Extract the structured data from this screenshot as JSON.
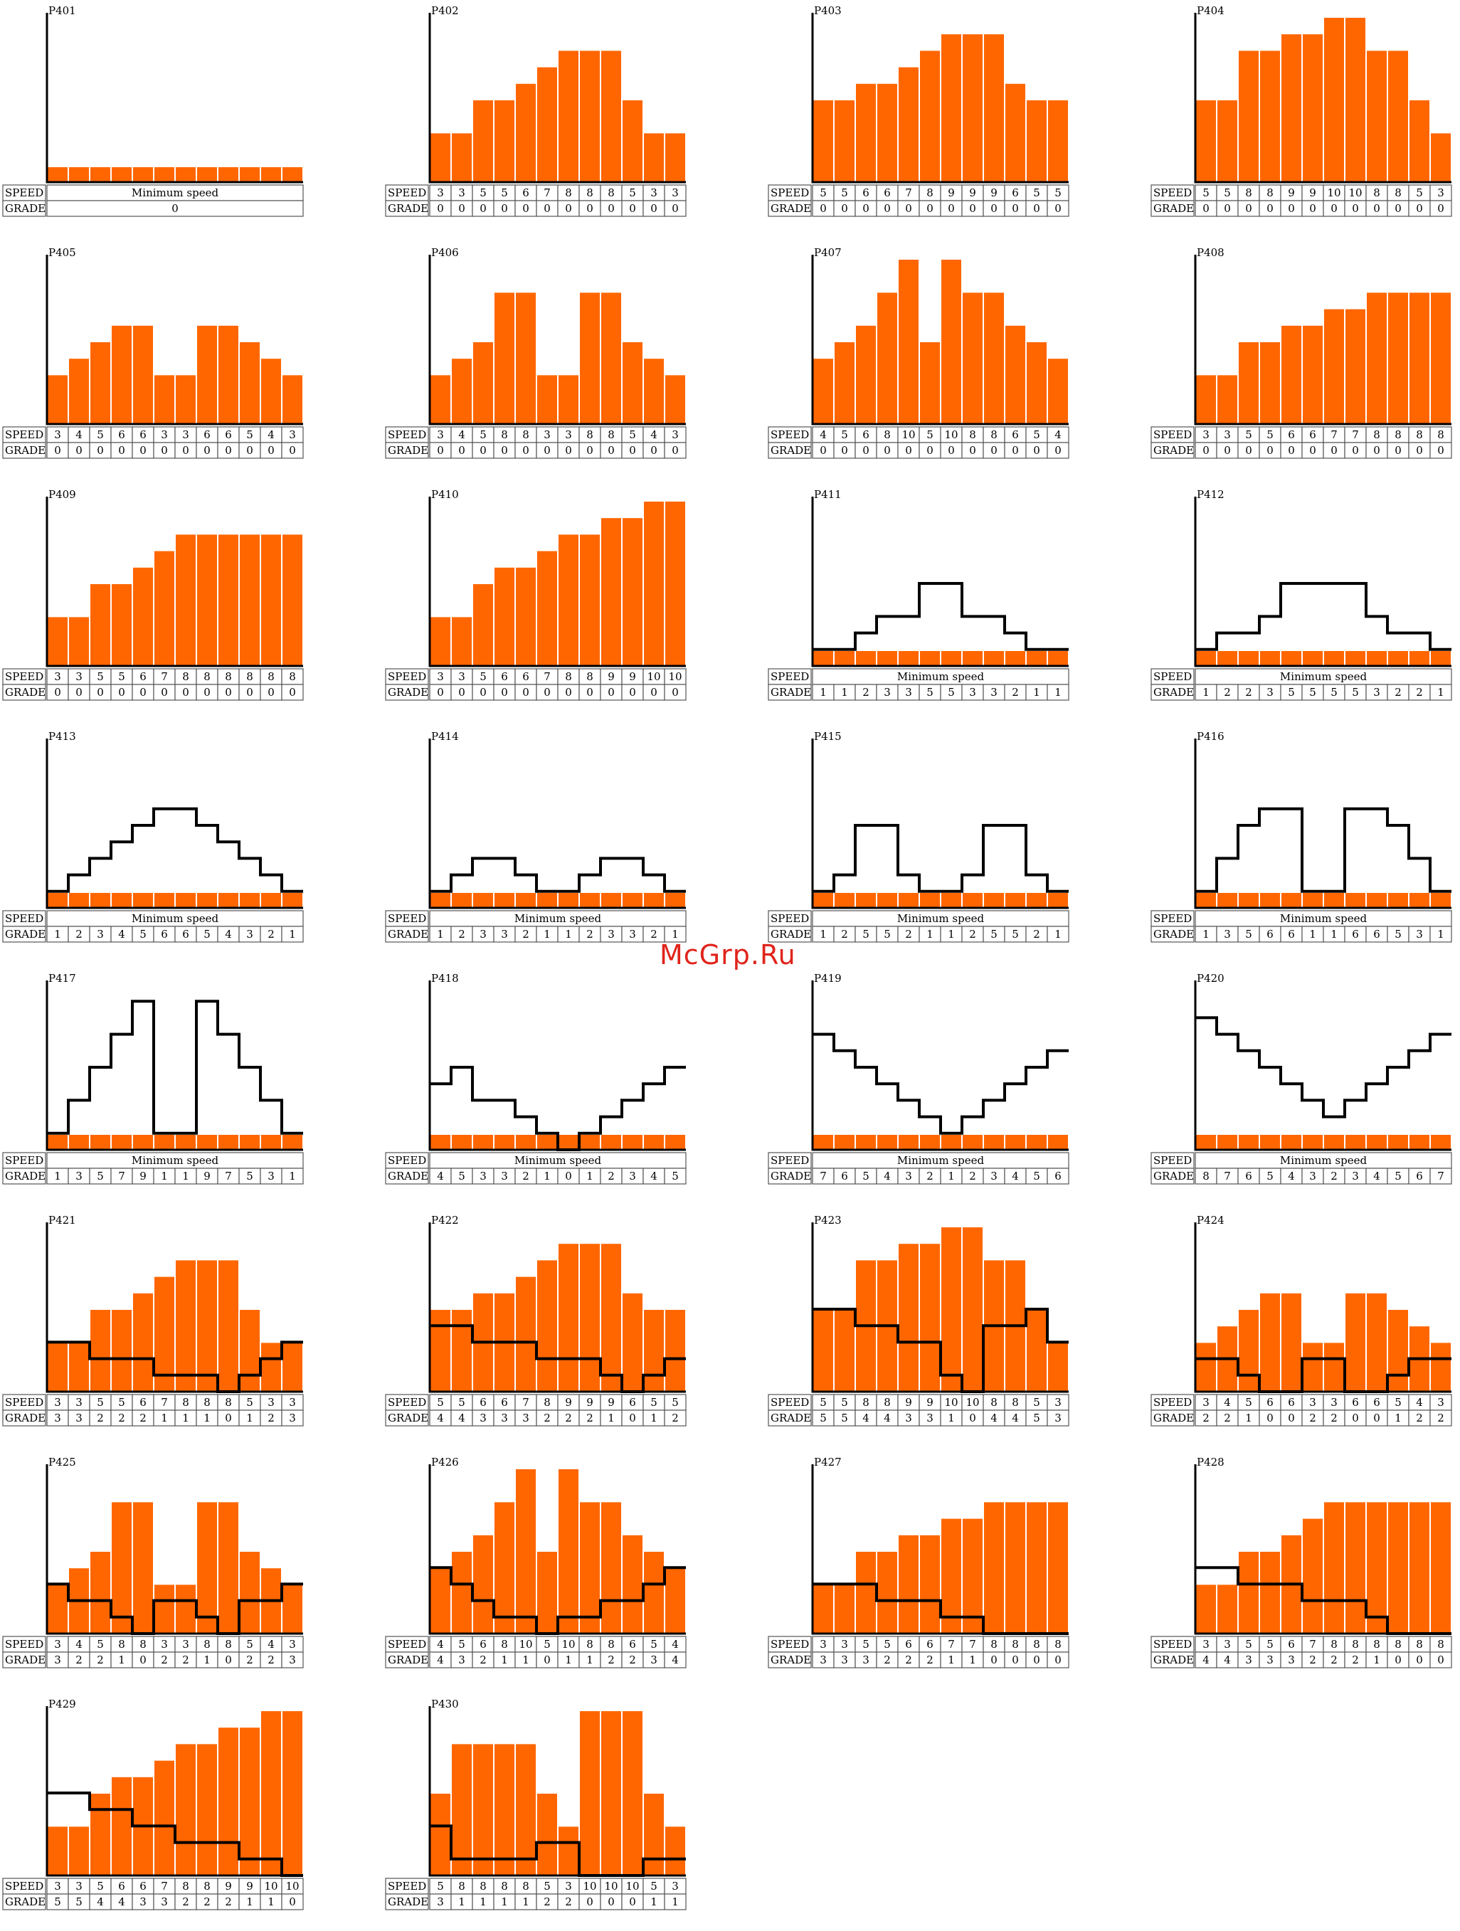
{
  "watermark": "McGrp.Ru",
  "row_labels": {
    "speed": "SPEED",
    "grade": "GRADE"
  },
  "min_speed_label": "Minimum speed",
  "chart_data": [
    {
      "type": "bar",
      "title": "P401",
      "speed": null,
      "grade": [
        0
      ]
    },
    {
      "type": "bar",
      "title": "P402",
      "speed": [
        3,
        3,
        5,
        5,
        6,
        7,
        8,
        8,
        8,
        5,
        3,
        3
      ],
      "grade": [
        0,
        0,
        0,
        0,
        0,
        0,
        0,
        0,
        0,
        0,
        0,
        0
      ]
    },
    {
      "type": "bar",
      "title": "P403",
      "speed": [
        5,
        5,
        6,
        6,
        7,
        8,
        9,
        9,
        9,
        6,
        5,
        5
      ],
      "grade": [
        0,
        0,
        0,
        0,
        0,
        0,
        0,
        0,
        0,
        0,
        0,
        0
      ]
    },
    {
      "type": "bar",
      "title": "P404",
      "speed": [
        5,
        5,
        8,
        8,
        9,
        9,
        10,
        10,
        8,
        8,
        5,
        3
      ],
      "grade": [
        0,
        0,
        0,
        0,
        0,
        0,
        0,
        0,
        0,
        0,
        0,
        0
      ]
    },
    {
      "type": "bar",
      "title": "P405",
      "speed": [
        3,
        4,
        5,
        6,
        6,
        3,
        3,
        6,
        6,
        5,
        4,
        3
      ],
      "grade": [
        0,
        0,
        0,
        0,
        0,
        0,
        0,
        0,
        0,
        0,
        0,
        0
      ]
    },
    {
      "type": "bar",
      "title": "P406",
      "speed": [
        3,
        4,
        5,
        8,
        8,
        3,
        3,
        8,
        8,
        5,
        4,
        3
      ],
      "grade": [
        0,
        0,
        0,
        0,
        0,
        0,
        0,
        0,
        0,
        0,
        0,
        0
      ]
    },
    {
      "type": "bar",
      "title": "P407",
      "speed": [
        4,
        5,
        6,
        8,
        10,
        5,
        10,
        8,
        8,
        6,
        5,
        4
      ],
      "grade": [
        0,
        0,
        0,
        0,
        0,
        0,
        0,
        0,
        0,
        0,
        0,
        0
      ]
    },
    {
      "type": "bar",
      "title": "P408",
      "speed": [
        3,
        3,
        5,
        5,
        6,
        6,
        7,
        7,
        8,
        8,
        8,
        8
      ],
      "grade": [
        0,
        0,
        0,
        0,
        0,
        0,
        0,
        0,
        0,
        0,
        0,
        0
      ]
    },
    {
      "type": "bar",
      "title": "P409",
      "speed": [
        3,
        3,
        5,
        5,
        6,
        7,
        8,
        8,
        8,
        8,
        8,
        8
      ],
      "grade": [
        0,
        0,
        0,
        0,
        0,
        0,
        0,
        0,
        0,
        0,
        0,
        0
      ]
    },
    {
      "type": "bar",
      "title": "P410",
      "speed": [
        3,
        3,
        5,
        6,
        6,
        7,
        8,
        8,
        9,
        9,
        10,
        10
      ],
      "grade": [
        0,
        0,
        0,
        0,
        0,
        0,
        0,
        0,
        0,
        0,
        0,
        0
      ]
    },
    {
      "type": "bar",
      "title": "P411",
      "speed": null,
      "grade": [
        1,
        1,
        2,
        3,
        3,
        5,
        5,
        3,
        3,
        2,
        1,
        1
      ]
    },
    {
      "type": "bar",
      "title": "P412",
      "speed": null,
      "grade": [
        1,
        2,
        2,
        3,
        5,
        5,
        5,
        5,
        3,
        2,
        2,
        1
      ]
    },
    {
      "type": "bar",
      "title": "P413",
      "speed": null,
      "grade": [
        1,
        2,
        3,
        4,
        5,
        6,
        6,
        5,
        4,
        3,
        2,
        1
      ]
    },
    {
      "type": "bar",
      "title": "P414",
      "speed": null,
      "grade": [
        1,
        2,
        3,
        3,
        2,
        1,
        1,
        2,
        3,
        3,
        2,
        1
      ]
    },
    {
      "type": "bar",
      "title": "P415",
      "speed": null,
      "grade": [
        1,
        2,
        5,
        5,
        2,
        1,
        1,
        2,
        5,
        5,
        2,
        1
      ]
    },
    {
      "type": "bar",
      "title": "P416",
      "speed": null,
      "grade": [
        1,
        3,
        5,
        6,
        6,
        1,
        1,
        6,
        6,
        5,
        3,
        1
      ]
    },
    {
      "type": "bar",
      "title": "P417",
      "speed": null,
      "grade": [
        1,
        3,
        5,
        7,
        9,
        1,
        1,
        9,
        7,
        5,
        3,
        1
      ]
    },
    {
      "type": "bar",
      "title": "P418",
      "speed": null,
      "grade": [
        4,
        5,
        3,
        3,
        2,
        1,
        0,
        1,
        2,
        3,
        4,
        5
      ]
    },
    {
      "type": "bar",
      "title": "P419",
      "speed": null,
      "grade": [
        7,
        6,
        5,
        4,
        3,
        2,
        1,
        2,
        3,
        4,
        5,
        6
      ]
    },
    {
      "type": "bar",
      "title": "P420",
      "speed": null,
      "grade": [
        8,
        7,
        6,
        5,
        4,
        3,
        2,
        3,
        4,
        5,
        6,
        7
      ]
    },
    {
      "type": "bar",
      "title": "P421",
      "speed": [
        3,
        3,
        5,
        5,
        6,
        7,
        8,
        8,
        8,
        5,
        3,
        3
      ],
      "grade": [
        3,
        3,
        2,
        2,
        2,
        1,
        1,
        1,
        0,
        1,
        2,
        3
      ]
    },
    {
      "type": "bar",
      "title": "P422",
      "speed": [
        5,
        5,
        6,
        6,
        7,
        8,
        9,
        9,
        9,
        6,
        5,
        5
      ],
      "grade": [
        4,
        4,
        3,
        3,
        3,
        2,
        2,
        2,
        1,
        0,
        1,
        2
      ]
    },
    {
      "type": "bar",
      "title": "P423",
      "speed": [
        5,
        5,
        8,
        8,
        9,
        9,
        10,
        10,
        8,
        8,
        5,
        3
      ],
      "grade": [
        5,
        5,
        4,
        4,
        3,
        3,
        1,
        0,
        4,
        4,
        5,
        3
      ]
    },
    {
      "type": "bar",
      "title": "P424",
      "speed": [
        3,
        4,
        5,
        6,
        6,
        3,
        3,
        6,
        6,
        5,
        4,
        3
      ],
      "grade": [
        2,
        2,
        1,
        0,
        0,
        2,
        2,
        0,
        0,
        1,
        2,
        2
      ]
    },
    {
      "type": "bar",
      "title": "P425",
      "speed": [
        3,
        4,
        5,
        8,
        8,
        3,
        3,
        8,
        8,
        5,
        4,
        3
      ],
      "grade": [
        3,
        2,
        2,
        1,
        0,
        2,
        2,
        1,
        0,
        2,
        2,
        3
      ]
    },
    {
      "type": "bar",
      "title": "P426",
      "speed": [
        4,
        5,
        6,
        8,
        10,
        5,
        10,
        8,
        8,
        6,
        5,
        4
      ],
      "grade": [
        4,
        3,
        2,
        1,
        1,
        0,
        1,
        1,
        2,
        2,
        3,
        4
      ]
    },
    {
      "type": "bar",
      "title": "P427",
      "speed": [
        3,
        3,
        5,
        5,
        6,
        6,
        7,
        7,
        8,
        8,
        8,
        8
      ],
      "grade": [
        3,
        3,
        3,
        2,
        2,
        2,
        1,
        1,
        0,
        0,
        0,
        0
      ]
    },
    {
      "type": "bar",
      "title": "P428",
      "speed": [
        3,
        3,
        5,
        5,
        6,
        7,
        8,
        8,
        8,
        8,
        8,
        8
      ],
      "grade": [
        4,
        4,
        3,
        3,
        3,
        2,
        2,
        2,
        1,
        0,
        0,
        0
      ]
    },
    {
      "type": "bar",
      "title": "P429",
      "speed": [
        3,
        3,
        5,
        6,
        6,
        7,
        8,
        8,
        9,
        9,
        10,
        10
      ],
      "grade": [
        5,
        5,
        4,
        4,
        3,
        3,
        2,
        2,
        2,
        1,
        1,
        0
      ]
    },
    {
      "type": "bar",
      "title": "P430",
      "speed": [
        5,
        8,
        8,
        8,
        8,
        5,
        3,
        10,
        10,
        10,
        5,
        3
      ],
      "grade": [
        3,
        1,
        1,
        1,
        1,
        2,
        2,
        0,
        0,
        0,
        1,
        1
      ]
    }
  ]
}
